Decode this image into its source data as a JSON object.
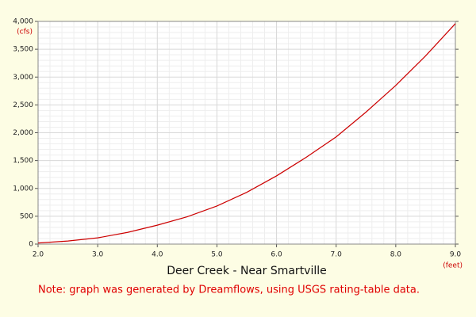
{
  "chart_data": {
    "type": "line",
    "title": "Deer Creek - Near Smartville",
    "note": "Note: graph was generated by Dreamflows, using USGS rating-table data.",
    "y_unit": "(cfs)",
    "x_unit": "(feet)",
    "x": [
      2.0,
      2.5,
      3.0,
      3.5,
      4.0,
      4.5,
      5.0,
      5.5,
      6.0,
      6.5,
      7.0,
      7.5,
      8.0,
      8.5,
      9.0
    ],
    "series": [
      {
        "color": "#cc0000",
        "values": [
          20,
          55,
          112,
          210,
          340,
          490,
          684,
          930,
          1225,
          1560,
          1925,
          2370,
          2850,
          3380,
          3960
        ]
      }
    ],
    "xlim": [
      2.0,
      9.0
    ],
    "xticks": [
      {
        "value": 2,
        "label": "2.0"
      },
      {
        "value": 3,
        "label": "3.0"
      },
      {
        "value": 4,
        "label": "4.0"
      },
      {
        "value": 5,
        "label": "5.0"
      },
      {
        "value": 6,
        "label": "6.0"
      },
      {
        "value": 7,
        "label": "7.0"
      },
      {
        "value": 8,
        "label": "8.0"
      },
      {
        "value": 9,
        "label": "9.0"
      }
    ],
    "ylim": [
      0,
      4000
    ],
    "yticks": [
      0,
      500,
      {
        "value": 1000,
        "label": "1,000"
      },
      {
        "value": 1500,
        "label": "1,500"
      },
      {
        "value": 2000,
        "label": "2,000"
      },
      {
        "value": 2500,
        "label": "2,500"
      },
      {
        "value": 3000,
        "label": "3,000"
      },
      {
        "value": 3500,
        "label": "3,500"
      },
      {
        "value": 4000,
        "label": "4,000"
      }
    ],
    "grid": true
  }
}
